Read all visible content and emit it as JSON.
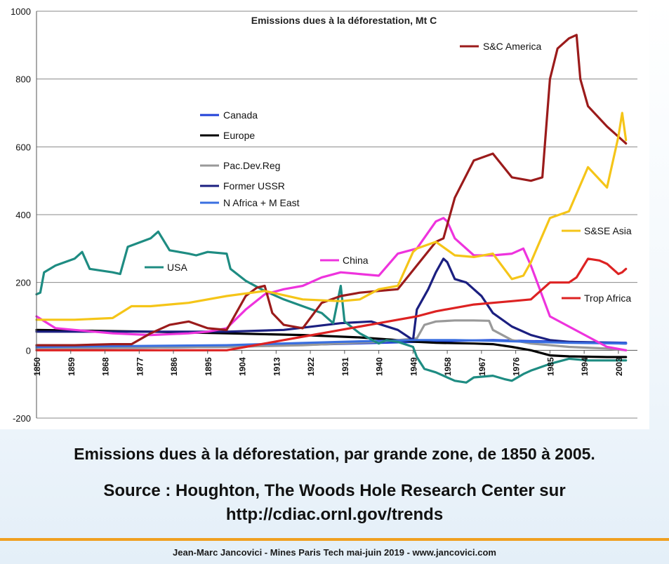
{
  "caption": {
    "main": "Emissions dues à la déforestation, par grande zone, de 1850 à 2005.",
    "source_line1": "Source : Houghton, The Woods Hole Research Center sur",
    "source_line2": "http://cdiac.ornl.gov/trends"
  },
  "footer": {
    "text": "Jean-Marc Jancovici - Mines Paris Tech mai-juin 2019 - www.jancovici.com",
    "rule_color": "#f0a020"
  },
  "chart_data": {
    "type": "line",
    "title": "Emissions dues à la déforestation, Mt C",
    "xlabel": "",
    "ylabel": "",
    "xlim": [
      1850,
      2005
    ],
    "ylim": [
      -200,
      1000
    ],
    "y_ticks": [
      -200,
      0,
      200,
      400,
      600,
      800,
      1000
    ],
    "x_tick_labels": [
      "1850",
      "1859",
      "1868",
      "1877",
      "1886",
      "1895",
      "1904",
      "1913",
      "1922",
      "1931",
      "1940",
      "1949",
      "1958",
      "1967",
      "1976",
      "1985",
      "1994",
      "2003"
    ],
    "grid": "horizontal",
    "series": [
      {
        "name": "Canada",
        "color": "#1f3fd8",
        "x": [
          1850,
          1900,
          1950,
          1960,
          1970,
          1980,
          1990,
          2005
        ],
        "y": [
          5,
          10,
          25,
          28,
          30,
          27,
          25,
          22
        ]
      },
      {
        "name": "Europe",
        "color": "#000000",
        "x": [
          1850,
          1880,
          1900,
          1920,
          1935,
          1945,
          1950,
          1955,
          1965,
          1970,
          1975,
          1980,
          1985,
          1990,
          2000,
          2005
        ],
        "y": [
          60,
          55,
          50,
          45,
          38,
          30,
          25,
          22,
          20,
          18,
          10,
          0,
          -15,
          -18,
          -20,
          -20
        ]
      },
      {
        "name": "Pac.Dev.Reg",
        "color": "#999999",
        "x": [
          1850,
          1900,
          1920,
          1930,
          1940,
          1945,
          1950,
          1952,
          1955,
          1960,
          1965,
          1969,
          1970,
          1975,
          1980,
          1990,
          2000,
          2005
        ],
        "y": [
          5,
          10,
          15,
          20,
          25,
          30,
          35,
          75,
          85,
          88,
          88,
          87,
          60,
          30,
          20,
          10,
          5,
          0
        ]
      },
      {
        "name": "Former USSR",
        "color": "#1b1f80",
        "x": [
          1850,
          1900,
          1915,
          1930,
          1938,
          1945,
          1949,
          1950,
          1953,
          1955,
          1957,
          1958,
          1960,
          1963,
          1965,
          1967,
          1970,
          1975,
          1980,
          1985,
          1990,
          2005
        ],
        "y": [
          55,
          55,
          60,
          80,
          85,
          60,
          30,
          120,
          180,
          230,
          270,
          260,
          210,
          200,
          180,
          160,
          110,
          70,
          45,
          30,
          25,
          20
        ]
      },
      {
        "name": "N Africa + M East",
        "color": "#3a6fe0",
        "x": [
          1850,
          1900,
          1930,
          1950,
          1960,
          1970,
          1980,
          1990,
          2005
        ],
        "y": [
          10,
          15,
          25,
          30,
          30,
          28,
          25,
          22,
          20
        ]
      },
      {
        "name": "USA",
        "color": "#1e8c82",
        "x": [
          1850,
          1851,
          1852,
          1855,
          1860,
          1862,
          1864,
          1870,
          1872,
          1874,
          1880,
          1882,
          1885,
          1890,
          1892,
          1895,
          1900,
          1901,
          1905,
          1910,
          1915,
          1920,
          1925,
          1928,
          1930,
          1931,
          1935,
          1940,
          1942,
          1945,
          1949,
          1950,
          1952,
          1955,
          1960,
          1963,
          1965,
          1970,
          1973,
          1975,
          1978,
          1980,
          1985,
          1990,
          1995,
          2000,
          2005
        ],
        "y": [
          165,
          170,
          230,
          250,
          270,
          290,
          240,
          230,
          225,
          305,
          330,
          350,
          295,
          285,
          280,
          290,
          285,
          240,
          205,
          175,
          150,
          130,
          110,
          80,
          190,
          85,
          50,
          20,
          30,
          25,
          10,
          -20,
          -55,
          -65,
          -90,
          -95,
          -80,
          -75,
          -85,
          -90,
          -70,
          -60,
          -40,
          -25,
          -30,
          -30,
          -30
        ]
      },
      {
        "name": "China",
        "color": "#ee33dd",
        "x": [
          1850,
          1855,
          1860,
          1870,
          1880,
          1890,
          1895,
          1900,
          1905,
          1910,
          1915,
          1920,
          1925,
          1930,
          1935,
          1940,
          1945,
          1950,
          1955,
          1957,
          1958,
          1960,
          1965,
          1970,
          1975,
          1978,
          1980,
          1985,
          1990,
          1995,
          2000,
          2005
        ],
        "y": [
          100,
          65,
          60,
          50,
          45,
          50,
          55,
          65,
          120,
          165,
          180,
          190,
          215,
          230,
          225,
          220,
          285,
          300,
          380,
          390,
          380,
          330,
          280,
          280,
          285,
          300,
          250,
          100,
          70,
          40,
          10,
          0
        ]
      },
      {
        "name": "S&C America",
        "color": "#9b1b1b",
        "x": [
          1850,
          1860,
          1870,
          1875,
          1880,
          1885,
          1890,
          1895,
          1900,
          1905,
          1908,
          1910,
          1912,
          1915,
          1920,
          1925,
          1930,
          1935,
          1945,
          1950,
          1955,
          1957,
          1960,
          1965,
          1970,
          1975,
          1980,
          1983,
          1985,
          1987,
          1990,
          1992,
          1993,
          1995,
          2000,
          2005
        ],
        "y": [
          15,
          15,
          18,
          18,
          50,
          75,
          85,
          65,
          60,
          160,
          185,
          190,
          110,
          75,
          65,
          140,
          160,
          170,
          180,
          250,
          320,
          330,
          450,
          560,
          580,
          510,
          500,
          510,
          800,
          890,
          920,
          930,
          800,
          720,
          660,
          610
        ]
      },
      {
        "name": "S&SE Asia",
        "color": "#f5c518",
        "x": [
          1850,
          1860,
          1870,
          1875,
          1880,
          1890,
          1900,
          1910,
          1920,
          1930,
          1935,
          1940,
          1945,
          1949,
          1950,
          1955,
          1960,
          1965,
          1970,
          1975,
          1978,
          1980,
          1985,
          1990,
          1995,
          2000,
          2003,
          2004,
          2005
        ],
        "y": [
          90,
          90,
          95,
          130,
          130,
          140,
          160,
          175,
          150,
          145,
          150,
          180,
          190,
          290,
          300,
          320,
          280,
          275,
          285,
          210,
          220,
          260,
          390,
          410,
          540,
          480,
          630,
          700,
          620
        ]
      },
      {
        "name": "Trop Africa",
        "color": "#dd2222",
        "x": [
          1850,
          1880,
          1900,
          1905,
          1910,
          1915,
          1920,
          1925,
          1930,
          1935,
          1940,
          1945,
          1950,
          1955,
          1960,
          1965,
          1970,
          1975,
          1980,
          1985,
          1990,
          1992,
          1995,
          1998,
          2000,
          2003,
          2004,
          2005
        ],
        "y": [
          0,
          0,
          0,
          10,
          20,
          30,
          40,
          50,
          60,
          70,
          80,
          90,
          100,
          115,
          125,
          135,
          140,
          145,
          150,
          200,
          200,
          215,
          270,
          265,
          255,
          225,
          230,
          240
        ]
      }
    ]
  }
}
